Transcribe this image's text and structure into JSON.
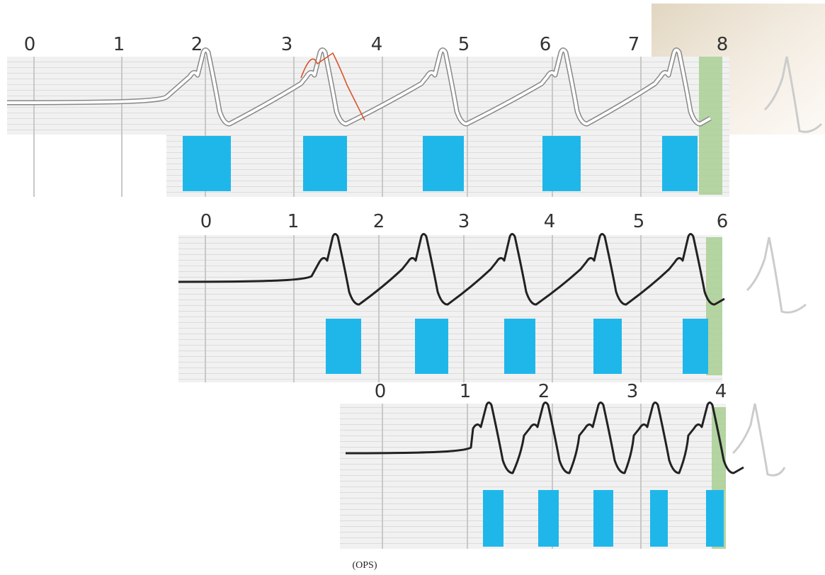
{
  "panels": [
    {
      "ticks": [
        0,
        1,
        2,
        3,
        4,
        5,
        6,
        7,
        8
      ]
    },
    {
      "ticks": [
        0,
        1,
        2,
        3,
        4,
        5,
        6
      ]
    },
    {
      "ticks": [
        0,
        1,
        2,
        3,
        4
      ]
    }
  ],
  "caption": "(OPS)"
}
